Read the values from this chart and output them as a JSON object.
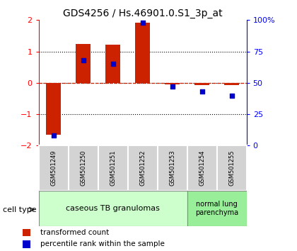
{
  "title": "GDS4256 / Hs.46901.0.S1_3p_at",
  "samples": [
    "GSM501249",
    "GSM501250",
    "GSM501251",
    "GSM501252",
    "GSM501253",
    "GSM501254",
    "GSM501255"
  ],
  "red_values": [
    -1.65,
    1.25,
    1.22,
    1.92,
    -0.05,
    -0.08,
    -0.07
  ],
  "blue_values_pct": [
    8,
    68,
    65,
    98,
    47,
    43,
    40
  ],
  "ylim_left": [
    -2,
    2
  ],
  "ylim_right": [
    0,
    100
  ],
  "yticks_left": [
    -2,
    -1,
    0,
    1,
    2
  ],
  "yticks_right": [
    0,
    25,
    50,
    75,
    100
  ],
  "ytick_labels_right": [
    "0",
    "25",
    "50",
    "75",
    "100%"
  ],
  "bar_color": "#cc2200",
  "dot_color": "#0000cc",
  "group1_label": "caseous TB granulomas",
  "group1_indices": [
    0,
    1,
    2,
    3,
    4
  ],
  "group2_label": "normal lung\nparenchyma",
  "group2_indices": [
    5,
    6
  ],
  "group1_bg": "#ccffcc",
  "group2_bg": "#99ee99",
  "sample_box_bg": "#d3d3d3",
  "legend_red_label": "transformed count",
  "legend_blue_label": "percentile rank within the sample",
  "cell_type_label": "cell type",
  "bar_width": 0.5,
  "dot_size": 25
}
